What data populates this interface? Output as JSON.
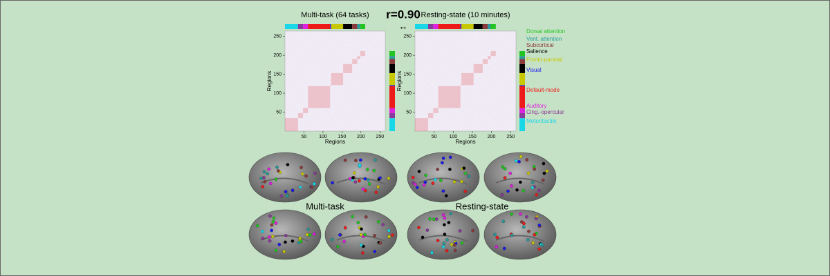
{
  "panels": [
    {
      "title": "Multi-task (64 tasks)",
      "x_label": "Regions",
      "y_label": "Regions",
      "xlim": [
        0,
        264
      ],
      "ylim": [
        0,
        264
      ],
      "xticks": [
        50,
        100,
        150,
        200,
        250
      ],
      "yticks": [
        50,
        100,
        150,
        200,
        250
      ]
    },
    {
      "title": "Resting-state (10 minutes)",
      "x_label": "Regions",
      "y_label": "Regions",
      "xlim": [
        0,
        264
      ],
      "ylim": [
        0,
        264
      ],
      "xticks": [
        50,
        100,
        150,
        200,
        250
      ],
      "yticks": [
        50,
        100,
        150,
        200,
        250
      ]
    }
  ],
  "correlation": "r=0.90",
  "networks": [
    {
      "name": "Dorsal attention",
      "color": "#22c522"
    },
    {
      "name": "Vent. attention",
      "color": "#2a9a9a"
    },
    {
      "name": "Subcortical",
      "color": "#8b3a3a"
    },
    {
      "name": "Salience",
      "color": "#000000"
    },
    {
      "name": "Fronto-parietal",
      "color": "#c8c800"
    },
    {
      "name": "Visual",
      "color": "#1a1aee"
    },
    {
      "name": "Default-mode",
      "color": "#ee1a1a"
    },
    {
      "name": "Auditory",
      "color": "#e020e0"
    },
    {
      "name": "Cing.-opercular",
      "color": "#8a3a9a"
    },
    {
      "name": "Motor/tactile",
      "color": "#18d8e8"
    }
  ],
  "brain_labels": [
    "Multi-task",
    "Resting-state"
  ]
}
